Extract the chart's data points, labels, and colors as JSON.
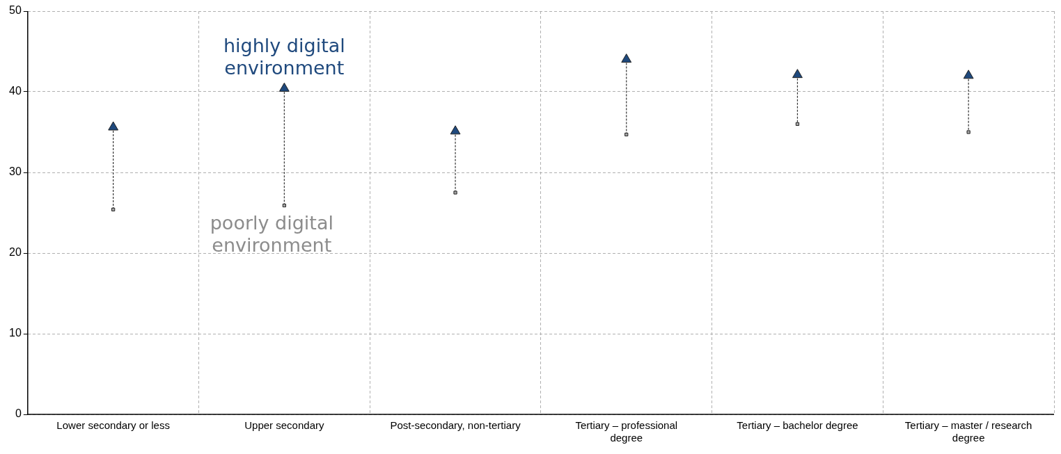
{
  "chart_data": {
    "type": "scatter",
    "categories": [
      "Lower secondary or less",
      "Upper secondary",
      "Post-secondary, non-tertiary",
      "Tertiary – professional degree",
      "Tertiary – bachelor degree",
      "Tertiary – master / research degree"
    ],
    "series": [
      {
        "name": "highly digital environment",
        "color": "#1f497d",
        "marker": "triangle",
        "values": [
          35.6,
          40.4,
          35.1,
          44.0,
          42.1,
          42.0
        ]
      },
      {
        "name": "poorly digital environment",
        "color": "#a6a6a6",
        "marker": "square",
        "values": [
          25.4,
          25.9,
          27.5,
          34.7,
          36.0,
          35.0
        ]
      }
    ],
    "ylim": [
      0,
      50
    ],
    "yticks": [
      0,
      10,
      20,
      30,
      40,
      50
    ],
    "grid": true,
    "legend": false
  }
}
